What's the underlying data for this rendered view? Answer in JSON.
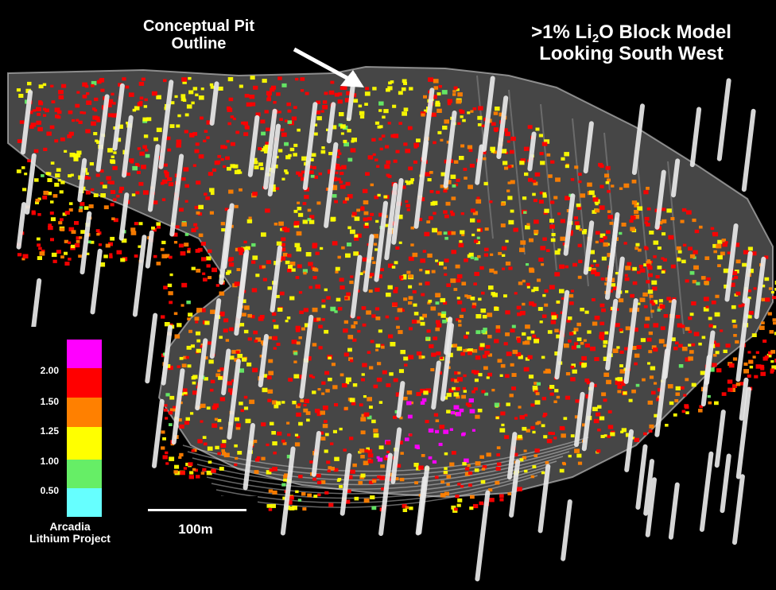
{
  "annotations": {
    "pit_label_line1": "Conceptual Pit",
    "pit_label_line2": "Outline",
    "title_line1_prefix": ">1% Li",
    "title_line1_sub": "2",
    "title_line1_suffix": "O Block Model",
    "title_line2": "Looking South West"
  },
  "legend": {
    "ticks": [
      "2.00",
      "1.50",
      "1.25",
      "1.00",
      "0.50"
    ],
    "colors": [
      "#ff00ff",
      "#ff0000",
      "#ff8000",
      "#ffff00",
      "#66ee66",
      "#66ffff"
    ],
    "caption_line1": "Arcadia",
    "caption_line2": "Lithium Project"
  },
  "scale": {
    "label": "100m"
  },
  "colors": {
    "background": "#000000",
    "pit_shell": "#b8b8b8",
    "drillhole": "#e8e8e8",
    "arrow": "#ffffff"
  }
}
